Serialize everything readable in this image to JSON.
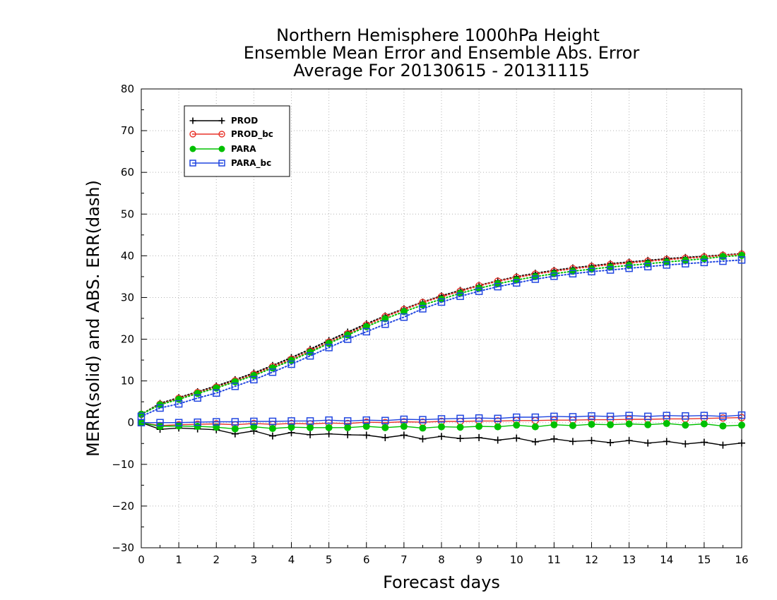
{
  "chart_data": {
    "type": "line",
    "title_lines": [
      "Northern Hemisphere 1000hPa Height",
      "Ensemble Mean Error and Ensemble Abs. Error",
      "Average For 20130615 - 20131115"
    ],
    "xlabel": "Forecast days",
    "ylabel": "MERR(solid) and ABS. ERR(dash)",
    "xlim": [
      0,
      16
    ],
    "ylim": [
      -30,
      80
    ],
    "xticks": [
      "0",
      "1",
      "2",
      "3",
      "4",
      "5",
      "6",
      "7",
      "8",
      "9",
      "10",
      "11",
      "12",
      "13",
      "14",
      "15",
      "16"
    ],
    "yticks": [
      "80",
      "70",
      "60",
      "50",
      "40",
      "30",
      "20",
      "10",
      "0",
      "−10",
      "−20",
      "−30"
    ],
    "ytick_values": [
      80,
      70,
      60,
      50,
      40,
      30,
      20,
      10,
      0,
      -10,
      -20,
      -30
    ],
    "grid": true,
    "legend_position": "top-left",
    "x": [
      0,
      0.5,
      1,
      1.5,
      2,
      2.5,
      3,
      3.5,
      4,
      4.5,
      5,
      5.5,
      6,
      6.5,
      7,
      7.5,
      8,
      8.5,
      9,
      9.5,
      10,
      10.5,
      11,
      11.5,
      12,
      12.5,
      13,
      13.5,
      14,
      14.5,
      15,
      15.5,
      16
    ],
    "series": [
      {
        "name": "PROD",
        "color": "#000000",
        "marker": "plus",
        "merr": [
          0,
          -1.6,
          -1.3,
          -1.5,
          -1.7,
          -2.7,
          -2.0,
          -3.2,
          -2.4,
          -2.9,
          -2.7,
          -2.9,
          -3.0,
          -3.6,
          -3.0,
          -3.9,
          -3.3,
          -3.8,
          -3.6,
          -4.2,
          -3.7,
          -4.6,
          -3.9,
          -4.5,
          -4.3,
          -4.8,
          -4.3,
          -4.9,
          -4.5,
          -5.1,
          -4.7,
          -5.4,
          -4.9
        ],
        "abs_err": [
          2.0,
          4.6,
          6.0,
          7.4,
          8.8,
          10.3,
          11.9,
          13.7,
          15.6,
          17.6,
          19.7,
          21.7,
          23.7,
          25.6,
          27.3,
          28.9,
          30.4,
          31.7,
          32.9,
          34.0,
          35.0,
          35.8,
          36.5,
          37.1,
          37.6,
          38.1,
          38.5,
          38.9,
          39.3,
          39.6,
          39.9,
          40.2,
          40.5
        ]
      },
      {
        "name": "PROD_bc",
        "color": "#e8342a",
        "marker": "circle",
        "merr": [
          0,
          -0.7,
          -0.5,
          -0.4,
          -0.3,
          -0.5,
          -0.2,
          -0.4,
          -0.2,
          -0.3,
          -0.1,
          -0.2,
          0.1,
          0.0,
          0.2,
          0.1,
          0.3,
          0.3,
          0.4,
          0.4,
          0.5,
          0.5,
          0.6,
          0.6,
          0.7,
          0.7,
          0.8,
          0.8,
          0.9,
          0.9,
          1.0,
          1.1,
          1.2
        ],
        "abs_err": [
          2.0,
          4.4,
          5.8,
          7.2,
          8.5,
          10.0,
          11.6,
          13.4,
          15.2,
          17.2,
          19.3,
          21.3,
          23.4,
          25.4,
          27.1,
          28.8,
          30.2,
          31.5,
          32.8,
          33.9,
          34.8,
          35.6,
          36.3,
          36.9,
          37.4,
          37.9,
          38.3,
          38.7,
          39.1,
          39.4,
          39.7,
          40.1,
          40.4
        ]
      },
      {
        "name": "PARA",
        "color": "#00c000",
        "marker": "filled-circle",
        "merr": [
          0,
          -0.9,
          -0.8,
          -0.9,
          -1.1,
          -1.5,
          -1.0,
          -1.4,
          -1.1,
          -1.2,
          -1.2,
          -1.2,
          -0.9,
          -1.2,
          -0.9,
          -1.3,
          -1.0,
          -1.1,
          -0.9,
          -1.0,
          -0.6,
          -1.0,
          -0.5,
          -0.7,
          -0.4,
          -0.5,
          -0.3,
          -0.5,
          -0.2,
          -0.6,
          -0.3,
          -0.8,
          -0.6
        ],
        "abs_err": [
          2.0,
          4.3,
          5.6,
          7.0,
          8.3,
          9.8,
          11.3,
          13.1,
          14.9,
          16.9,
          19.0,
          21.0,
          23.0,
          24.9,
          26.6,
          28.2,
          29.6,
          31.0,
          32.2,
          33.3,
          34.2,
          35.0,
          35.7,
          36.3,
          36.8,
          37.3,
          37.7,
          38.1,
          38.5,
          38.9,
          39.3,
          39.8,
          40.1
        ]
      },
      {
        "name": "PARA_bc",
        "color": "#2146e0",
        "marker": "square",
        "merr": [
          0,
          0.0,
          0.0,
          0.1,
          0.2,
          0.2,
          0.3,
          0.3,
          0.4,
          0.4,
          0.6,
          0.4,
          0.6,
          0.5,
          0.8,
          0.7,
          0.9,
          1.0,
          1.1,
          1.0,
          1.3,
          1.3,
          1.5,
          1.4,
          1.6,
          1.5,
          1.7,
          1.5,
          1.7,
          1.6,
          1.7,
          1.5,
          1.8
        ],
        "abs_err": [
          1.5,
          3.5,
          4.5,
          5.9,
          7.1,
          8.7,
          10.3,
          12.1,
          14.0,
          16.0,
          18.0,
          20.0,
          21.8,
          23.6,
          25.3,
          27.3,
          28.9,
          30.3,
          31.5,
          32.6,
          33.5,
          34.4,
          35.1,
          35.7,
          36.2,
          36.6,
          37.0,
          37.4,
          37.8,
          38.1,
          38.4,
          38.7,
          39.0
        ]
      }
    ]
  }
}
